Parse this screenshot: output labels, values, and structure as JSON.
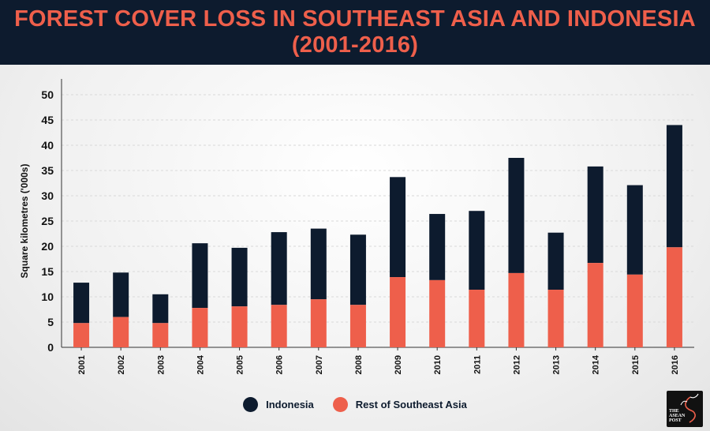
{
  "header": {
    "title_line1": "FOREST COVER LOSS IN SOUTHEAST ASIA AND INDONESIA",
    "title_line2": "(2001-2016)"
  },
  "colors": {
    "indonesia": "#0d1b2e",
    "rest_of_southeast_asia": "#ee5f4b",
    "title": "#ee5f4b",
    "header_bg": "#0d1b2e"
  },
  "logo": {
    "line1": "THE",
    "line2": "ASEAN",
    "line3": "POST"
  },
  "chart_data": {
    "type": "bar",
    "stacked": true,
    "title": "FOREST COVER LOSS IN SOUTHEAST ASIA AND INDONESIA (2001-2016)",
    "xlabel": "",
    "ylabel": "Square kilometres ('000s)",
    "ylim": [
      0,
      50
    ],
    "yticks": [
      0,
      5,
      10,
      15,
      20,
      25,
      30,
      35,
      40,
      45,
      50
    ],
    "grid": true,
    "legend": "bottom",
    "categories": [
      "2001",
      "2002",
      "2003",
      "2004",
      "2005",
      "2006",
      "2007",
      "2008",
      "2009",
      "2010",
      "2011",
      "2012",
      "2013",
      "2014",
      "2015",
      "2016"
    ],
    "series": [
      {
        "name": "Rest of Southeast Asia",
        "color": "#ee5f4b",
        "values": [
          4.8,
          6.0,
          4.8,
          7.8,
          8.1,
          8.4,
          9.5,
          8.4,
          13.9,
          13.3,
          11.4,
          14.7,
          11.4,
          16.7,
          14.4,
          19.8
        ]
      },
      {
        "name": "Indonesia",
        "color": "#0d1b2e",
        "values": [
          8.0,
          8.8,
          5.7,
          12.8,
          11.6,
          14.4,
          14.0,
          13.9,
          19.8,
          13.1,
          15.6,
          22.8,
          11.3,
          19.1,
          17.7,
          24.2
        ]
      }
    ]
  }
}
